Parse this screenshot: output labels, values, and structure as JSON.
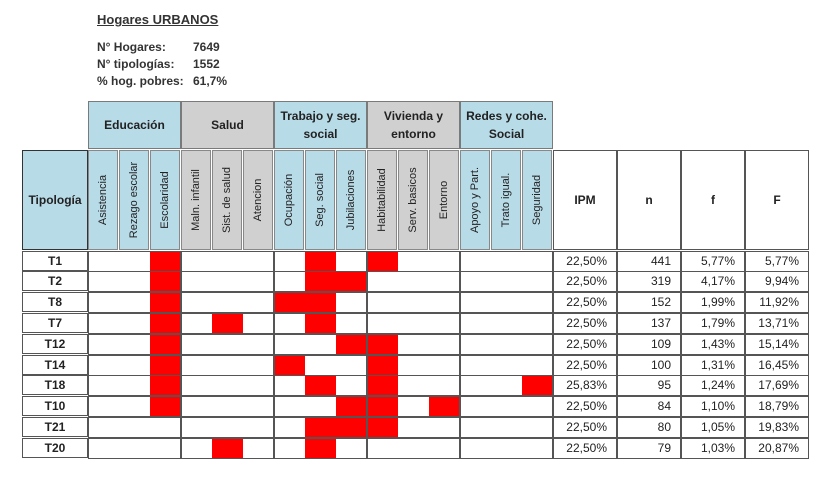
{
  "title": "Hogares URBANOS",
  "info": [
    {
      "label": "N° Hogares:",
      "value": "7649"
    },
    {
      "label": "N° tipologías:",
      "value": "1552"
    },
    {
      "label": "% hog. pobres:",
      "value": "61,7%"
    }
  ],
  "colors": {
    "educacion": "#b8dbe8",
    "salud": "#d0d0d0",
    "trabajo": "#b8dbe8",
    "vivienda": "#d0d0d0",
    "redes": "#b8dbe8",
    "marked": "#ff0000"
  },
  "groups": [
    {
      "label": "Educación",
      "span": 3,
      "color": "#b8dbe8"
    },
    {
      "label": "Salud",
      "span": 3,
      "color": "#d0d0d0"
    },
    {
      "label": "Trabajo y seg. social",
      "span": 3,
      "color": "#b8dbe8"
    },
    {
      "label": "Vivienda y entorno",
      "span": 3,
      "color": "#d0d0d0"
    },
    {
      "label": "Redes y cohe. Social",
      "span": 3,
      "color": "#b8dbe8"
    }
  ],
  "tipologia_header": "Tipología",
  "indicators": [
    "Asistencia",
    "Rezago escolar",
    "Escolaridad",
    "Maln. infantil",
    "Sist. de salud",
    "Atencion",
    "Ocupación",
    "Seg. social",
    "Jubilaciones",
    "Habitabilidad",
    "Serv. basicos",
    "Entorno",
    "Apoyo y Part.",
    "Trato igual.",
    "Seguridad"
  ],
  "metric_headers": [
    "IPM",
    "n",
    "f",
    "F"
  ],
  "rows": [
    {
      "tipologia": "T1",
      "marks": [
        0,
        0,
        1,
        0,
        0,
        0,
        0,
        1,
        0,
        1,
        0,
        0,
        0,
        0,
        0
      ],
      "ipm": "22,50%",
      "n": "441",
      "f": "5,77%",
      "F": "5,77%"
    },
    {
      "tipologia": "T2",
      "marks": [
        0,
        0,
        1,
        0,
        0,
        0,
        0,
        1,
        1,
        0,
        0,
        0,
        0,
        0,
        0
      ],
      "ipm": "22,50%",
      "n": "319",
      "f": "4,17%",
      "F": "9,94%"
    },
    {
      "tipologia": "T8",
      "marks": [
        0,
        0,
        1,
        0,
        0,
        0,
        1,
        1,
        0,
        0,
        0,
        0,
        0,
        0,
        0
      ],
      "ipm": "22,50%",
      "n": "152",
      "f": "1,99%",
      "F": "11,92%"
    },
    {
      "tipologia": "T7",
      "marks": [
        0,
        0,
        1,
        0,
        1,
        0,
        0,
        1,
        0,
        0,
        0,
        0,
        0,
        0,
        0
      ],
      "ipm": "22,50%",
      "n": "137",
      "f": "1,79%",
      "F": "13,71%"
    },
    {
      "tipologia": "T12",
      "marks": [
        0,
        0,
        1,
        0,
        0,
        0,
        0,
        0,
        1,
        1,
        0,
        0,
        0,
        0,
        0
      ],
      "ipm": "22,50%",
      "n": "109",
      "f": "1,43%",
      "F": "15,14%"
    },
    {
      "tipologia": "T14",
      "marks": [
        0,
        0,
        1,
        0,
        0,
        0,
        1,
        0,
        0,
        1,
        0,
        0,
        0,
        0,
        0
      ],
      "ipm": "22,50%",
      "n": "100",
      "f": "1,31%",
      "F": "16,45%"
    },
    {
      "tipologia": "T18",
      "marks": [
        0,
        0,
        1,
        0,
        0,
        0,
        0,
        1,
        0,
        1,
        0,
        0,
        0,
        0,
        1
      ],
      "ipm": "25,83%",
      "n": "95",
      "f": "1,24%",
      "F": "17,69%"
    },
    {
      "tipologia": "T10",
      "marks": [
        0,
        0,
        1,
        0,
        0,
        0,
        0,
        0,
        1,
        1,
        0,
        1,
        0,
        0,
        0
      ],
      "ipm": "22,50%",
      "n": "84",
      "f": "1,10%",
      "F": "18,79%"
    },
    {
      "tipologia": "T21",
      "marks": [
        0,
        0,
        0,
        0,
        0,
        0,
        0,
        1,
        1,
        1,
        0,
        0,
        0,
        0,
        0
      ],
      "ipm": "22,50%",
      "n": "80",
      "f": "1,05%",
      "F": "19,83%"
    },
    {
      "tipologia": "T20",
      "marks": [
        0,
        0,
        0,
        0,
        1,
        0,
        0,
        1,
        0,
        0,
        0,
        0,
        0,
        0,
        0
      ],
      "ipm": "22,50%",
      "n": "79",
      "f": "1,03%",
      "F": "20,87%"
    }
  ]
}
